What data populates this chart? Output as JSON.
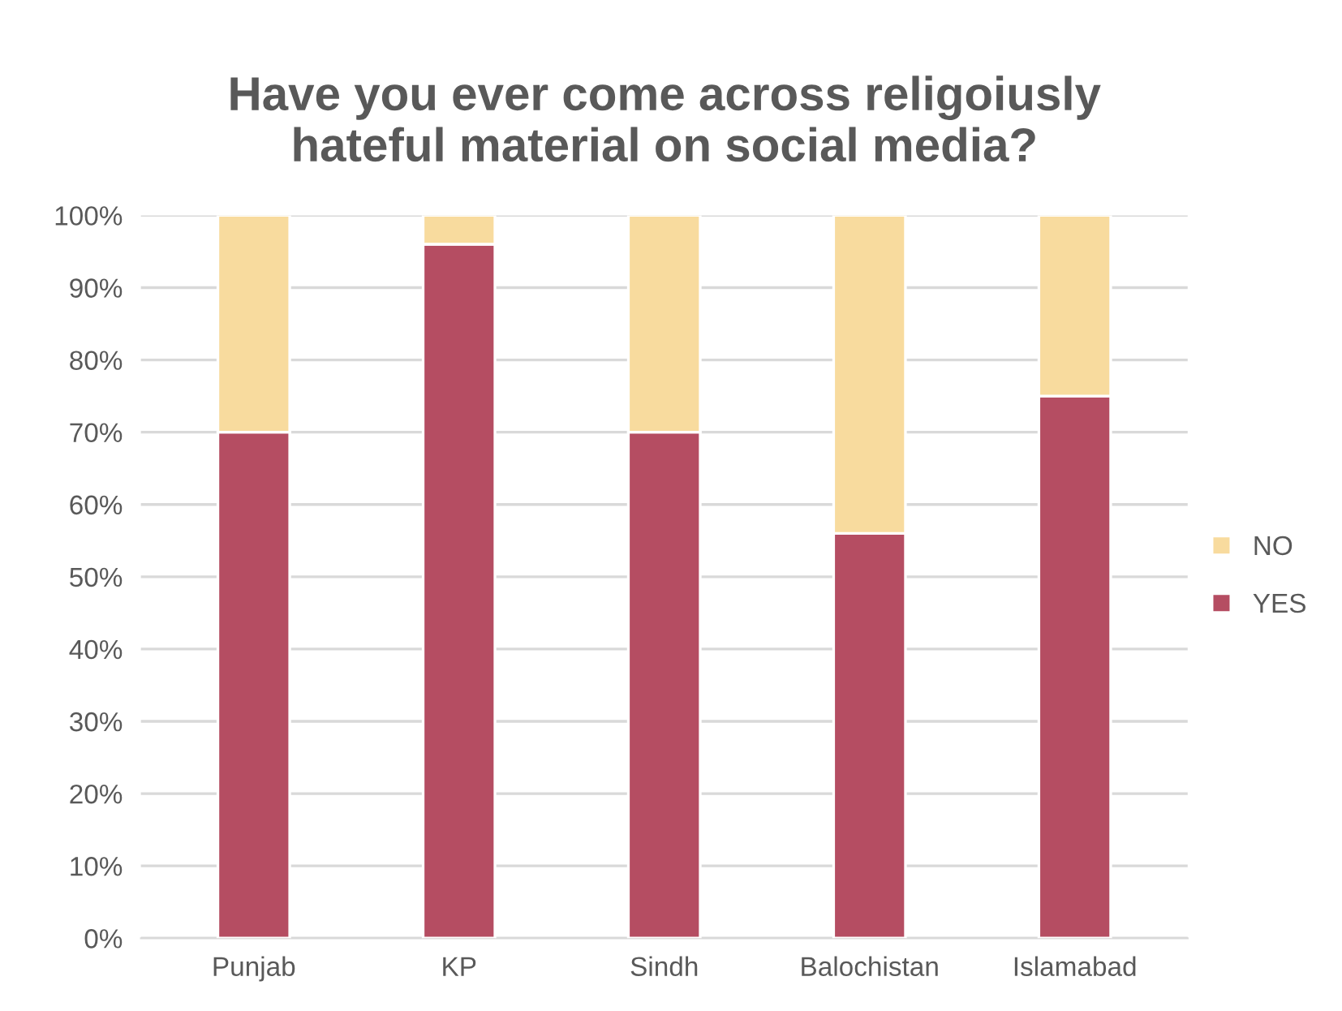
{
  "chart_data": {
    "type": "bar",
    "title": "Have you ever come across religoiusly\nhateful material on social media?",
    "categories": [
      "Punjab",
      "KP",
      "Sindh",
      "Balochistan",
      "Islamabad"
    ],
    "stacked": true,
    "series": [
      {
        "name": "YES",
        "color": "#b54d62",
        "values": [
          70,
          96,
          70,
          56,
          75
        ]
      },
      {
        "name": "NO",
        "color": "#f8db9e",
        "values": [
          30,
          4,
          30,
          44,
          25
        ]
      }
    ],
    "ylim": [
      0,
      100
    ],
    "yticks": [
      {
        "value": 0,
        "label": "0%"
      },
      {
        "value": 10,
        "label": "10%"
      },
      {
        "value": 20,
        "label": "20%"
      },
      {
        "value": 30,
        "label": "30%"
      },
      {
        "value": 40,
        "label": "40%"
      },
      {
        "value": 50,
        "label": "50%"
      },
      {
        "value": 60,
        "label": "60%"
      },
      {
        "value": 70,
        "label": "70%"
      },
      {
        "value": 80,
        "label": "80%"
      },
      {
        "value": 90,
        "label": "90%"
      },
      {
        "value": 100,
        "label": "100%"
      }
    ],
    "grid": "y",
    "legend": "right"
  }
}
